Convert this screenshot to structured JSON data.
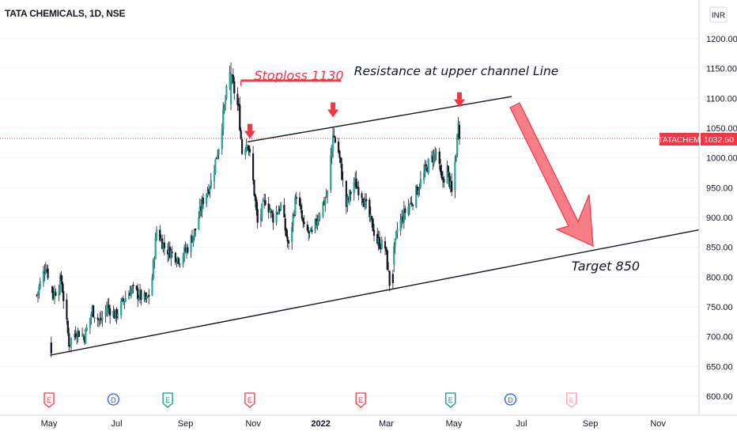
{
  "header": {
    "symbol_title": "TATA CHEMICALS, 1D, NSE"
  },
  "currency_badge": "INR",
  "price_tag": {
    "ticker": "TATACHEM",
    "value": "1032.50",
    "color": "#f23645"
  },
  "colors": {
    "up": "#26a69a",
    "down": "#131722",
    "wick": "#131722",
    "annotation_red": "#f23645",
    "arrow_fill": "#f7525f"
  },
  "annotations": {
    "stoploss": "Stoploss 1130",
    "resistance": "Resistance at upper channel Line",
    "target": "Target 850"
  },
  "event_markers": [
    {
      "letter": "E",
      "color": "#f23645",
      "date_index": 0
    },
    {
      "letter": "D",
      "color": "#2962ff",
      "date_index": 1
    },
    {
      "letter": "E",
      "color": "#089981",
      "date_index": 2
    },
    {
      "letter": "E",
      "color": "#f23645",
      "date_index": 3
    },
    {
      "letter": "E",
      "color": "#f23645",
      "date_index": 4
    },
    {
      "letter": "E",
      "color": "#089981",
      "date_index": 5
    },
    {
      "letter": "D",
      "color": "#2962ff",
      "date_index": 6
    },
    {
      "letter": "E",
      "color": "#f7a1ab",
      "date_index": 7
    }
  ],
  "chart_data": {
    "type": "candlestick",
    "y_ticks": [
      "1200.00",
      "1150.00",
      "1100.00",
      "1050.00",
      "1000.00",
      "950.00",
      "900.00",
      "850.00",
      "800.00",
      "750.00",
      "700.00",
      "650.00",
      "600.00"
    ],
    "x_ticks": [
      "May",
      "Jul",
      "Sep",
      "Nov",
      "2022",
      "Mar",
      "May",
      "Jul",
      "Sep",
      "Nov"
    ],
    "x_tick_bold": [
      false,
      false,
      false,
      false,
      true,
      false,
      false,
      false,
      false,
      false
    ],
    "ylim": [
      578,
      1262
    ],
    "last_price": 1032.5,
    "close_path": [
      {
        "date": "2021-04-20",
        "close": 770
      },
      {
        "date": "2021-04-28",
        "close": 820
      },
      {
        "date": "2021-05-05",
        "close": 770
      },
      {
        "date": "2021-05-12",
        "close": 795
      },
      {
        "date": "2021-05-19",
        "close": 690
      },
      {
        "date": "2021-05-26",
        "close": 710
      },
      {
        "date": "2021-06-02",
        "close": 700
      },
      {
        "date": "2021-06-09",
        "close": 745
      },
      {
        "date": "2021-06-16",
        "close": 725
      },
      {
        "date": "2021-06-23",
        "close": 750
      },
      {
        "date": "2021-06-30",
        "close": 735
      },
      {
        "date": "2021-07-07",
        "close": 760
      },
      {
        "date": "2021-07-14",
        "close": 780
      },
      {
        "date": "2021-07-21",
        "close": 770
      },
      {
        "date": "2021-07-28",
        "close": 760
      },
      {
        "date": "2021-08-01",
        "close": 780
      },
      {
        "date": "2021-08-06",
        "close": 880
      },
      {
        "date": "2021-08-13",
        "close": 850
      },
      {
        "date": "2021-08-20",
        "close": 840
      },
      {
        "date": "2021-08-27",
        "close": 830
      },
      {
        "date": "2021-09-03",
        "close": 850
      },
      {
        "date": "2021-09-10",
        "close": 880
      },
      {
        "date": "2021-09-17",
        "close": 930
      },
      {
        "date": "2021-09-24",
        "close": 960
      },
      {
        "date": "2021-10-01",
        "close": 1020
      },
      {
        "date": "2021-10-08",
        "close": 1110
      },
      {
        "date": "2021-10-11",
        "close": 1140
      },
      {
        "date": "2021-10-14",
        "close": 1120
      },
      {
        "date": "2021-10-19",
        "close": 1080
      },
      {
        "date": "2021-10-22",
        "close": 1010
      },
      {
        "date": "2021-10-27",
        "close": 1030
      },
      {
        "date": "2021-11-01",
        "close": 960
      },
      {
        "date": "2021-11-05",
        "close": 890
      },
      {
        "date": "2021-11-12",
        "close": 930
      },
      {
        "date": "2021-11-19",
        "close": 900
      },
      {
        "date": "2021-11-26",
        "close": 920
      },
      {
        "date": "2021-12-03",
        "close": 850
      },
      {
        "date": "2021-12-10",
        "close": 940
      },
      {
        "date": "2021-12-17",
        "close": 880
      },
      {
        "date": "2021-12-24",
        "close": 870
      },
      {
        "date": "2021-12-31",
        "close": 910
      },
      {
        "date": "2022-01-07",
        "close": 940
      },
      {
        "date": "2022-01-12",
        "close": 1040
      },
      {
        "date": "2022-01-17",
        "close": 1010
      },
      {
        "date": "2022-01-24",
        "close": 920
      },
      {
        "date": "2022-01-31",
        "close": 960
      },
      {
        "date": "2022-02-07",
        "close": 940
      },
      {
        "date": "2022-02-14",
        "close": 900
      },
      {
        "date": "2022-02-21",
        "close": 860
      },
      {
        "date": "2022-02-28",
        "close": 850
      },
      {
        "date": "2022-03-04",
        "close": 790
      },
      {
        "date": "2022-03-11",
        "close": 880
      },
      {
        "date": "2022-03-18",
        "close": 910
      },
      {
        "date": "2022-03-25",
        "close": 930
      },
      {
        "date": "2022-04-01",
        "close": 960
      },
      {
        "date": "2022-04-08",
        "close": 990
      },
      {
        "date": "2022-04-15",
        "close": 1010
      },
      {
        "date": "2022-04-20",
        "close": 960
      },
      {
        "date": "2022-04-25",
        "close": 980
      },
      {
        "date": "2022-04-29",
        "close": 940
      },
      {
        "date": "2022-05-03",
        "close": 1010
      },
      {
        "date": "2022-05-05",
        "close": 1060
      },
      {
        "date": "2022-05-06",
        "close": 1032.5
      }
    ],
    "series": [
      {
        "name": "upper channel line",
        "points": [
          {
            "date": "2021-10-27",
            "value": 1027
          },
          {
            "date": "2022-06-22",
            "value": 1103
          }
        ]
      },
      {
        "name": "lower channel line",
        "points": [
          {
            "date": "2021-05-02",
            "value": 669
          },
          {
            "date": "2022-12-10",
            "value": 880
          }
        ]
      },
      {
        "name": "stoploss line",
        "points": [
          {
            "date": "2021-10-21",
            "value": 1130
          },
          {
            "date": "2022-01-19",
            "value": 1130
          }
        ]
      }
    ]
  }
}
